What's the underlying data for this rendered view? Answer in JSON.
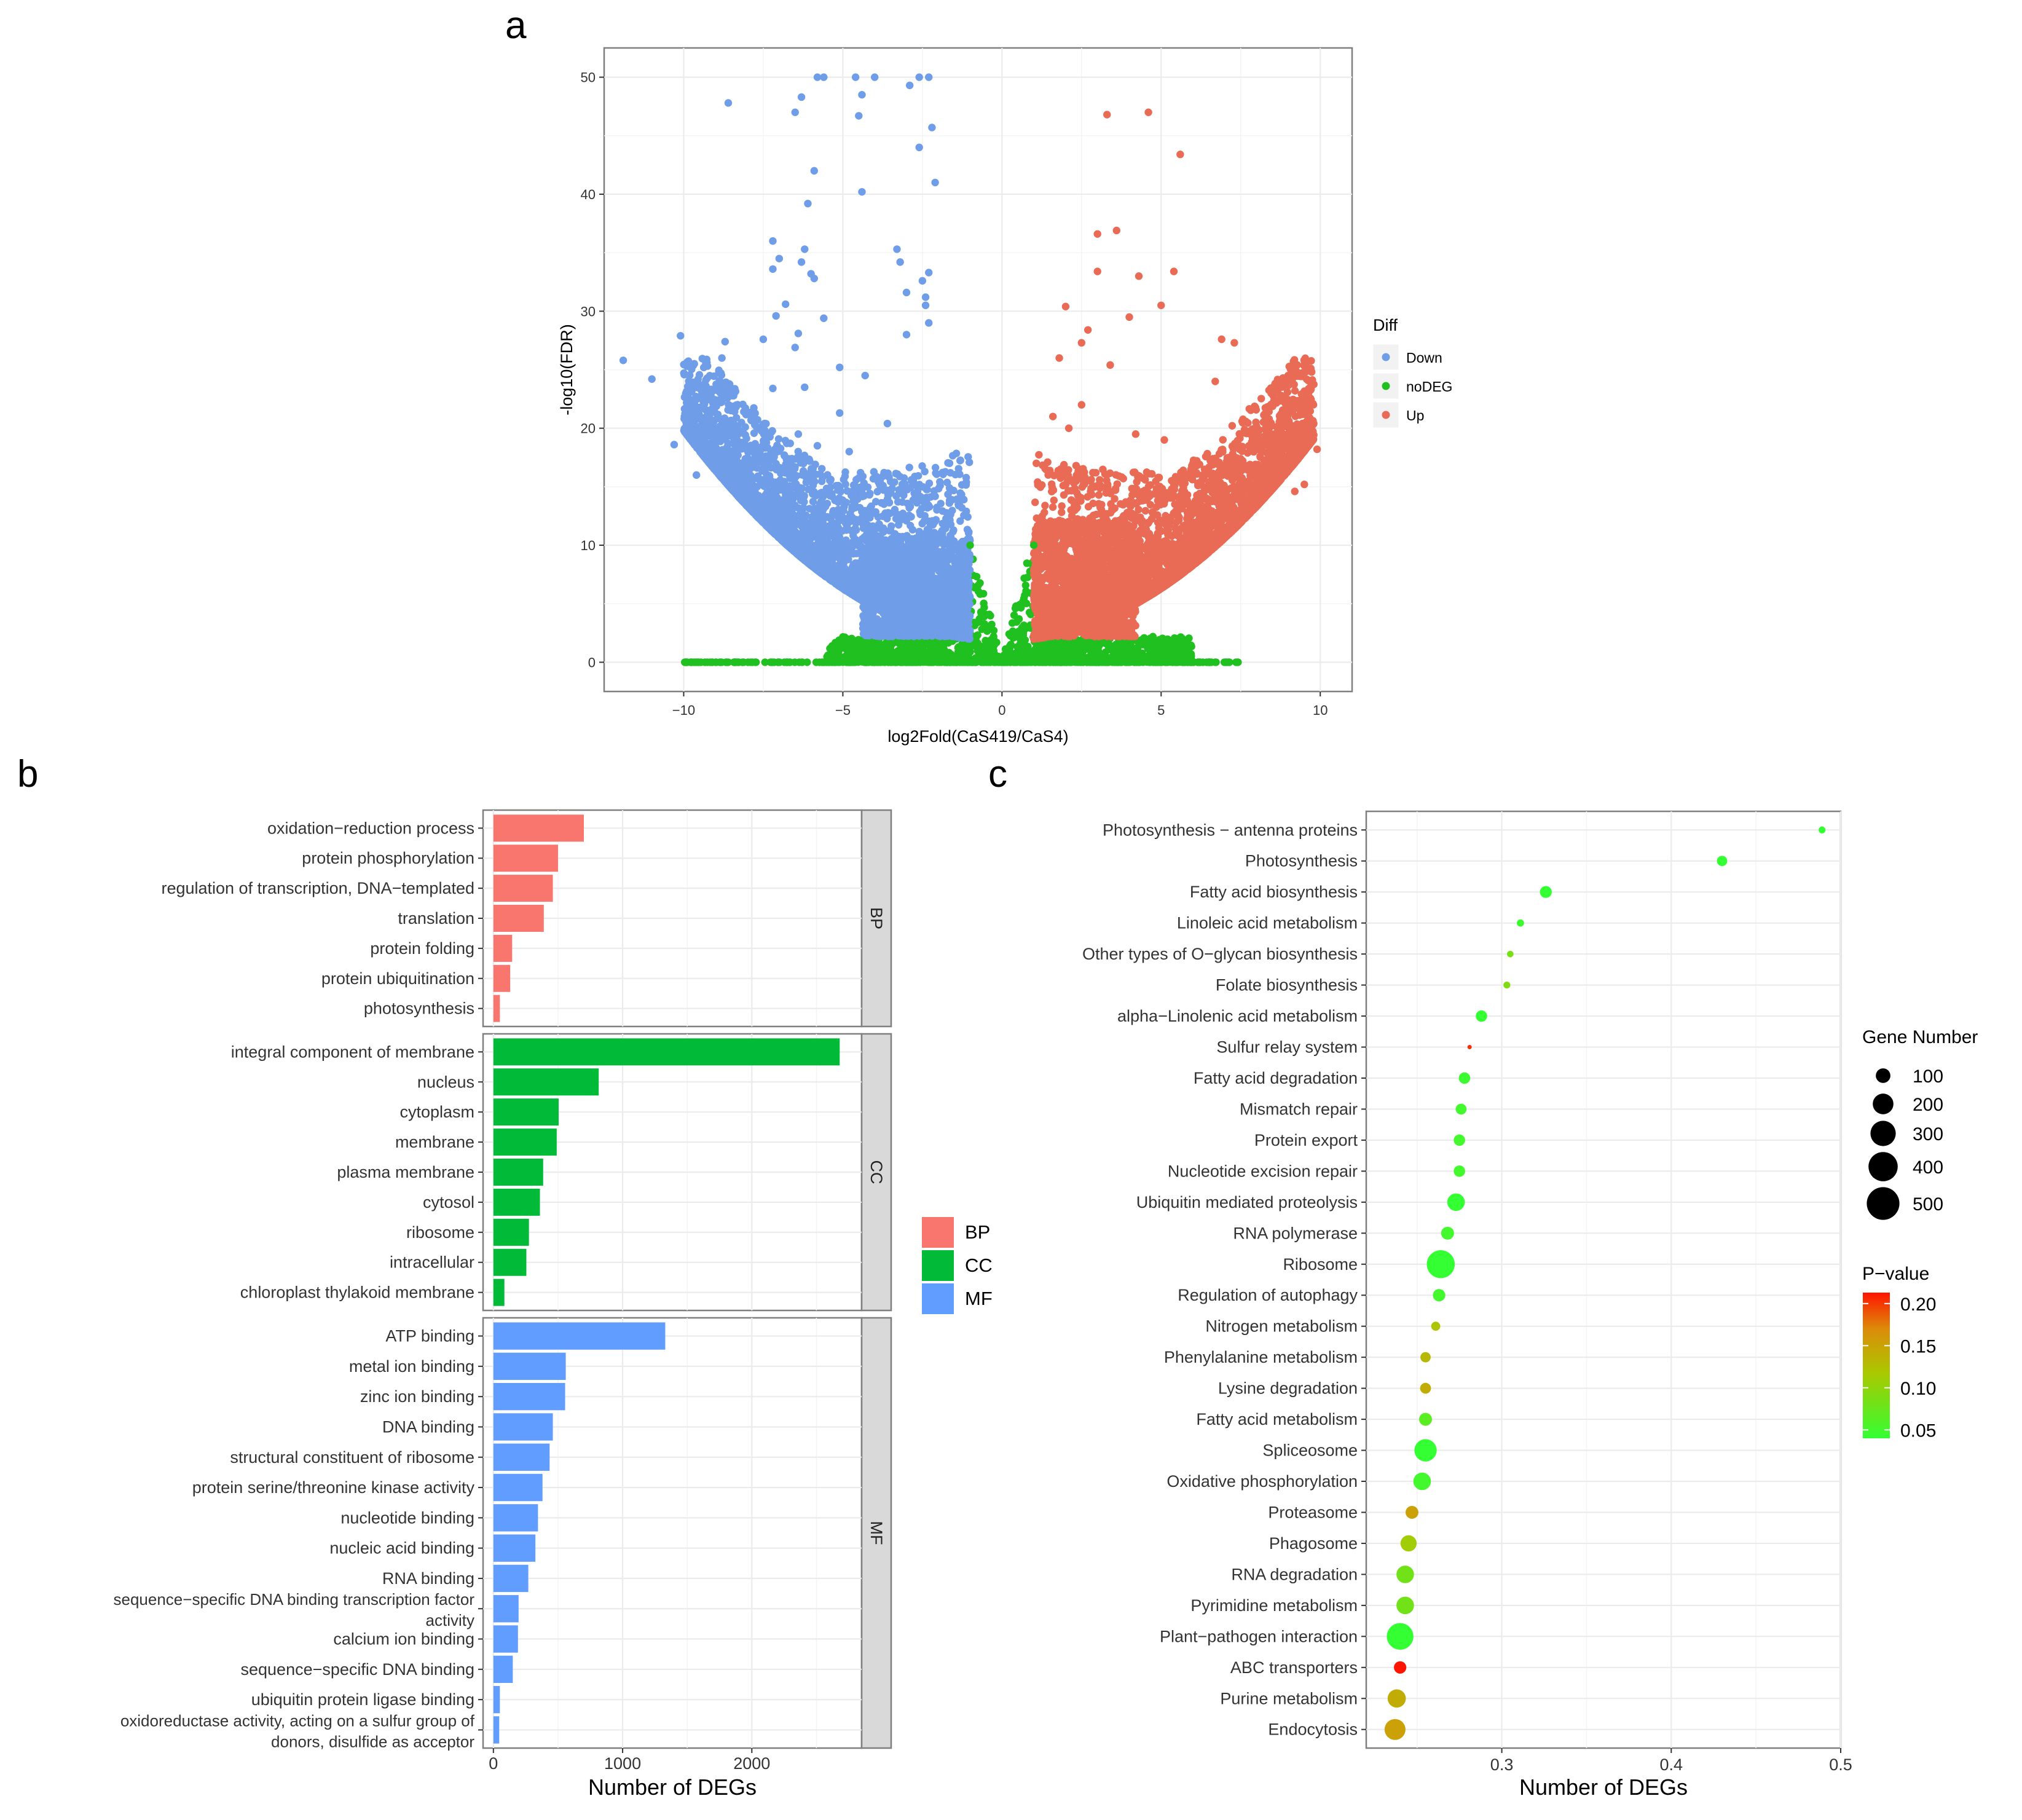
{
  "panel_labels": {
    "a": "a",
    "b": "b",
    "c": "c"
  },
  "colors": {
    "down": "#6f9de8",
    "nodeg": "#1fc01f",
    "up": "#ea6b55",
    "bp": "#f8766d",
    "cc": "#00ba38",
    "mf": "#619cff",
    "strip_bg": "#d9d9d9",
    "grid": "#ebebeb",
    "panel_border": "#7f7f7f"
  },
  "chart_data": [
    {
      "id": "volcano",
      "type": "scatter",
      "xlabel": "log2Fold(CaS419/CaS4)",
      "ylabel": "-log10(FDR)",
      "xlim": [
        -12.5,
        11
      ],
      "ylim": [
        -2.5,
        52.5
      ],
      "xticks": [
        -10,
        -5,
        0,
        5,
        10
      ],
      "yticks": [
        0,
        10,
        20,
        30,
        40,
        50
      ],
      "grid": true,
      "legend": {
        "title": "Diff",
        "placement": "right",
        "items": [
          "Down",
          "noDEG",
          "Up"
        ]
      },
      "series": [
        {
          "name": "Down",
          "points": [
            [
              -5.8,
              50
            ],
            [
              -5.6,
              50
            ],
            [
              -4.6,
              50
            ],
            [
              -4.0,
              50
            ],
            [
              -2.6,
              50
            ],
            [
              -2.3,
              50
            ],
            [
              -2.9,
              49.3
            ],
            [
              -6.3,
              48.3
            ],
            [
              -4.4,
              48.5
            ],
            [
              -8.6,
              47.8
            ],
            [
              -6.5,
              47
            ],
            [
              -4.5,
              46.7
            ],
            [
              -2.2,
              45.7
            ],
            [
              -2.6,
              44
            ],
            [
              -5.9,
              42
            ],
            [
              -2.1,
              41
            ],
            [
              -4.4,
              40.2
            ],
            [
              -6.1,
              39.2
            ],
            [
              -7.2,
              36
            ],
            [
              -3.3,
              35.3
            ],
            [
              -6.2,
              35.3
            ],
            [
              -7.0,
              34.5
            ],
            [
              -6.3,
              34.2
            ],
            [
              -3.2,
              34.2
            ],
            [
              -6.0,
              33.2
            ],
            [
              -7.2,
              33.6
            ],
            [
              -2.3,
              33.3
            ],
            [
              -5.9,
              32.8
            ],
            [
              -2.5,
              32.6
            ],
            [
              -3.0,
              31.6
            ],
            [
              -2.4,
              31.2
            ],
            [
              -6.8,
              30.6
            ],
            [
              -2.4,
              30.5
            ],
            [
              -7.1,
              29.6
            ],
            [
              -5.6,
              29.4
            ],
            [
              -2.3,
              29
            ],
            [
              -6.4,
              28.1
            ],
            [
              -3.0,
              28
            ],
            [
              -10.1,
              27.9
            ],
            [
              -7.5,
              27.6
            ],
            [
              -8.7,
              27.4
            ],
            [
              -6.5,
              26.9
            ],
            [
              -11.9,
              25.8
            ],
            [
              -8.8,
              26
            ],
            [
              -5.1,
              25.2
            ],
            [
              -11.0,
              24.2
            ],
            [
              -4.3,
              24.5
            ],
            [
              -6.2,
              23.5
            ],
            [
              -7.2,
              23.4
            ],
            [
              -8.5,
              23.1
            ],
            [
              -5.1,
              21.3
            ],
            [
              -8.4,
              20.3
            ],
            [
              -10.3,
              18.6
            ],
            [
              -5.8,
              18.5
            ],
            [
              -6.4,
              19.5
            ],
            [
              -9.6,
              16
            ],
            [
              -7.7,
              16.6
            ],
            [
              -7.3,
              15.4
            ],
            [
              -8.0,
              14.8
            ],
            [
              -4.8,
              18
            ],
            [
              -3.6,
              20.4
            ]
          ]
        },
        {
          "name": "Up",
          "points": [
            [
              4.6,
              47
            ],
            [
              3.3,
              46.8
            ],
            [
              5.6,
              43.4
            ],
            [
              3.6,
              36.9
            ],
            [
              3.0,
              36.6
            ],
            [
              5.4,
              33.4
            ],
            [
              3.0,
              33.4
            ],
            [
              4.3,
              33
            ],
            [
              5.0,
              30.5
            ],
            [
              2.0,
              30.4
            ],
            [
              4.0,
              29.5
            ],
            [
              2.7,
              28.4
            ],
            [
              6.9,
              27.6
            ],
            [
              7.3,
              27.3
            ],
            [
              2.5,
              27.3
            ],
            [
              1.8,
              26
            ],
            [
              3.4,
              25.4
            ],
            [
              6.7,
              24
            ],
            [
              9.9,
              18.2
            ],
            [
              7.4,
              17.4
            ],
            [
              9.5,
              15.2
            ],
            [
              9.2,
              14.6
            ],
            [
              7.0,
              14
            ],
            [
              2.5,
              22
            ],
            [
              1.6,
              21
            ],
            [
              2.1,
              20
            ],
            [
              4.2,
              19.5
            ],
            [
              5.1,
              19
            ],
            [
              6.0,
              17
            ]
          ]
        },
        {
          "name": "noDEG",
          "points": [
            [
              -9.6,
              0
            ],
            [
              -8.6,
              0
            ],
            [
              -8.3,
              0
            ],
            [
              6.2,
              0
            ],
            [
              6.7,
              0
            ],
            [
              7.4,
              0
            ],
            [
              -1.0,
              10
            ],
            [
              1.0,
              10
            ]
          ]
        }
      ]
    },
    {
      "id": "go_bar",
      "type": "bar",
      "orientation": "horizontal",
      "xlabel": "Number of DEGs",
      "xlim": [
        -80,
        2850
      ],
      "xticks": [
        0,
        1000,
        2000
      ],
      "grid": true,
      "legend": {
        "placement": "right",
        "items": [
          "BP",
          "CC",
          "MF"
        ]
      },
      "facets": [
        {
          "name": "BP",
          "categories": [
            "oxidation−reduction process",
            "protein phosphorylation",
            "regulation of transcription, DNA−templated",
            "translation",
            "protein folding",
            "protein ubiquitination",
            "photosynthesis"
          ],
          "values": [
            700,
            500,
            460,
            390,
            145,
            130,
            50
          ]
        },
        {
          "name": "CC",
          "categories": [
            "integral component of membrane",
            "nucleus",
            "cytoplasm",
            "membrane",
            "plasma membrane",
            "cytosol",
            "ribosome",
            "intracellular",
            "chloroplast thylakoid membrane"
          ],
          "values": [
            2680,
            815,
            505,
            490,
            385,
            360,
            275,
            255,
            85
          ]
        },
        {
          "name": "MF",
          "categories": [
            "ATP binding",
            "metal ion binding",
            "zinc ion binding",
            "DNA binding",
            "structural constituent of ribosome",
            "protein serine/threonine kinase activity",
            "nucleotide binding",
            "nucleic acid binding",
            "RNA binding",
            "sequence−specific DNA binding transcription factor activity",
            "calcium ion binding",
            "sequence−specific DNA binding",
            "ubiquitin protein ligase binding",
            "oxidoreductase activity, acting on a sulfur group of donors, disulfide as acceptor"
          ],
          "values": [
            1330,
            560,
            555,
            460,
            435,
            380,
            345,
            325,
            270,
            195,
            190,
            150,
            50,
            45
          ]
        }
      ]
    },
    {
      "id": "kegg_dot",
      "type": "scatter",
      "xlabel": "Number of DEGs",
      "xlim": [
        0.22,
        0.5
      ],
      "xticks": [
        0.3,
        0.4,
        0.5
      ],
      "xtick_labels": [
        "0.3",
        "0.4",
        "0.5"
      ],
      "grid": true,
      "categories": [
        "Photosynthesis − antenna proteins",
        "Photosynthesis",
        "Fatty acid biosynthesis",
        "Linoleic acid metabolism",
        "Other types of O−glycan biosynthesis",
        "Folate biosynthesis",
        "alpha−Linolenic acid metabolism",
        "Sulfur relay system",
        "Fatty acid degradation",
        "Mismatch repair",
        "Protein export",
        "Nucleotide excision repair",
        "Ubiquitin mediated proteolysis",
        "RNA polymerase",
        "Ribosome",
        "Regulation of autophagy",
        "Nitrogen metabolism",
        "Phenylalanine metabolism",
        "Lysine degradation",
        "Fatty acid metabolism",
        "Spliceosome",
        "Oxidative phosphorylation",
        "Proteasome",
        "Phagosome",
        "RNA degradation",
        "Pyrimidine metabolism",
        "Plant−pathogen interaction",
        "ABC transporters",
        "Purine metabolism",
        "Endocytosis"
      ],
      "x": [
        0.489,
        0.43,
        0.326,
        0.311,
        0.305,
        0.303,
        0.288,
        0.281,
        0.278,
        0.276,
        0.275,
        0.275,
        0.273,
        0.268,
        0.264,
        0.263,
        0.261,
        0.255,
        0.255,
        0.255,
        0.255,
        0.253,
        0.247,
        0.245,
        0.243,
        0.243,
        0.24,
        0.24,
        0.238,
        0.237
      ],
      "gene_number": [
        20,
        45,
        60,
        22,
        18,
        20,
        55,
        5,
        55,
        50,
        55,
        55,
        130,
        70,
        330,
        65,
        35,
        45,
        50,
        70,
        210,
        130,
        70,
        110,
        130,
        130,
        300,
        65,
        140,
        185
      ],
      "p_value": [
        0.04,
        0.04,
        0.04,
        0.045,
        0.085,
        0.09,
        0.04,
        0.2,
        0.045,
        0.05,
        0.05,
        0.05,
        0.04,
        0.05,
        0.035,
        0.05,
        0.12,
        0.13,
        0.14,
        0.065,
        0.04,
        0.05,
        0.15,
        0.11,
        0.08,
        0.08,
        0.04,
        0.21,
        0.14,
        0.15
      ],
      "size_legend": {
        "title": "Gene Number",
        "values": [
          100,
          200,
          300,
          400,
          500
        ]
      },
      "color_legend": {
        "title": "P−value",
        "values": [
          0.2,
          0.15,
          0.1,
          0.05
        ],
        "labels": [
          "0.20",
          "0.15",
          "0.10",
          "0.05"
        ],
        "low_color": "#33ff33",
        "high_color": "#ff1a00"
      }
    }
  ]
}
